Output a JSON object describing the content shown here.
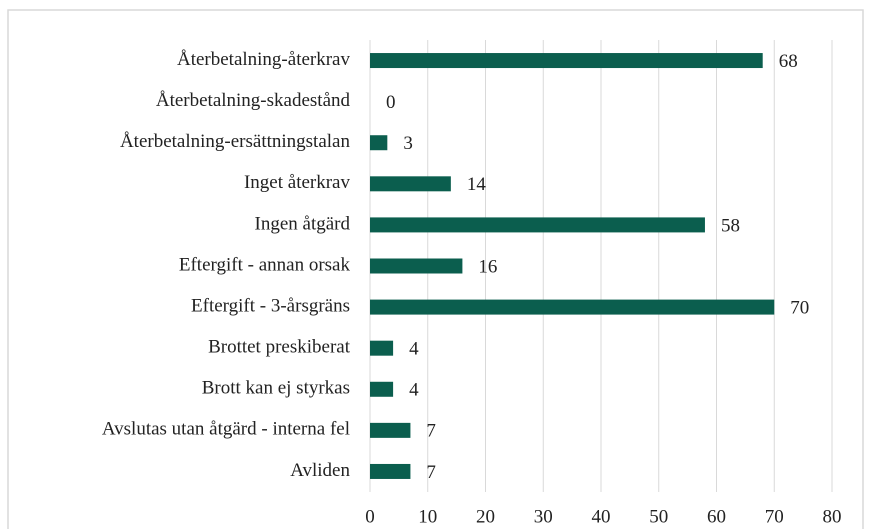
{
  "chart_data": {
    "type": "bar",
    "orientation": "horizontal",
    "categories": [
      "Återbetalning-återkrav",
      "Återbetalning-skadestånd",
      "Återbetalning-ersättningstalan",
      "Inget återkrav",
      "Ingen åtgärd",
      "Eftergift - annan orsak",
      "Eftergift - 3-årsgräns",
      "Brottet preskiberat",
      "Brott kan ej styrkas",
      "Avslutas utan åtgärd - interna fel",
      "Avliden"
    ],
    "values": [
      68,
      0,
      3,
      14,
      58,
      16,
      70,
      4,
      4,
      7,
      7
    ],
    "color": "#0b5e4e",
    "xlim": [
      0,
      80
    ],
    "xticks": [
      0,
      10,
      20,
      30,
      40,
      50,
      60,
      70,
      80
    ],
    "grid": true
  }
}
